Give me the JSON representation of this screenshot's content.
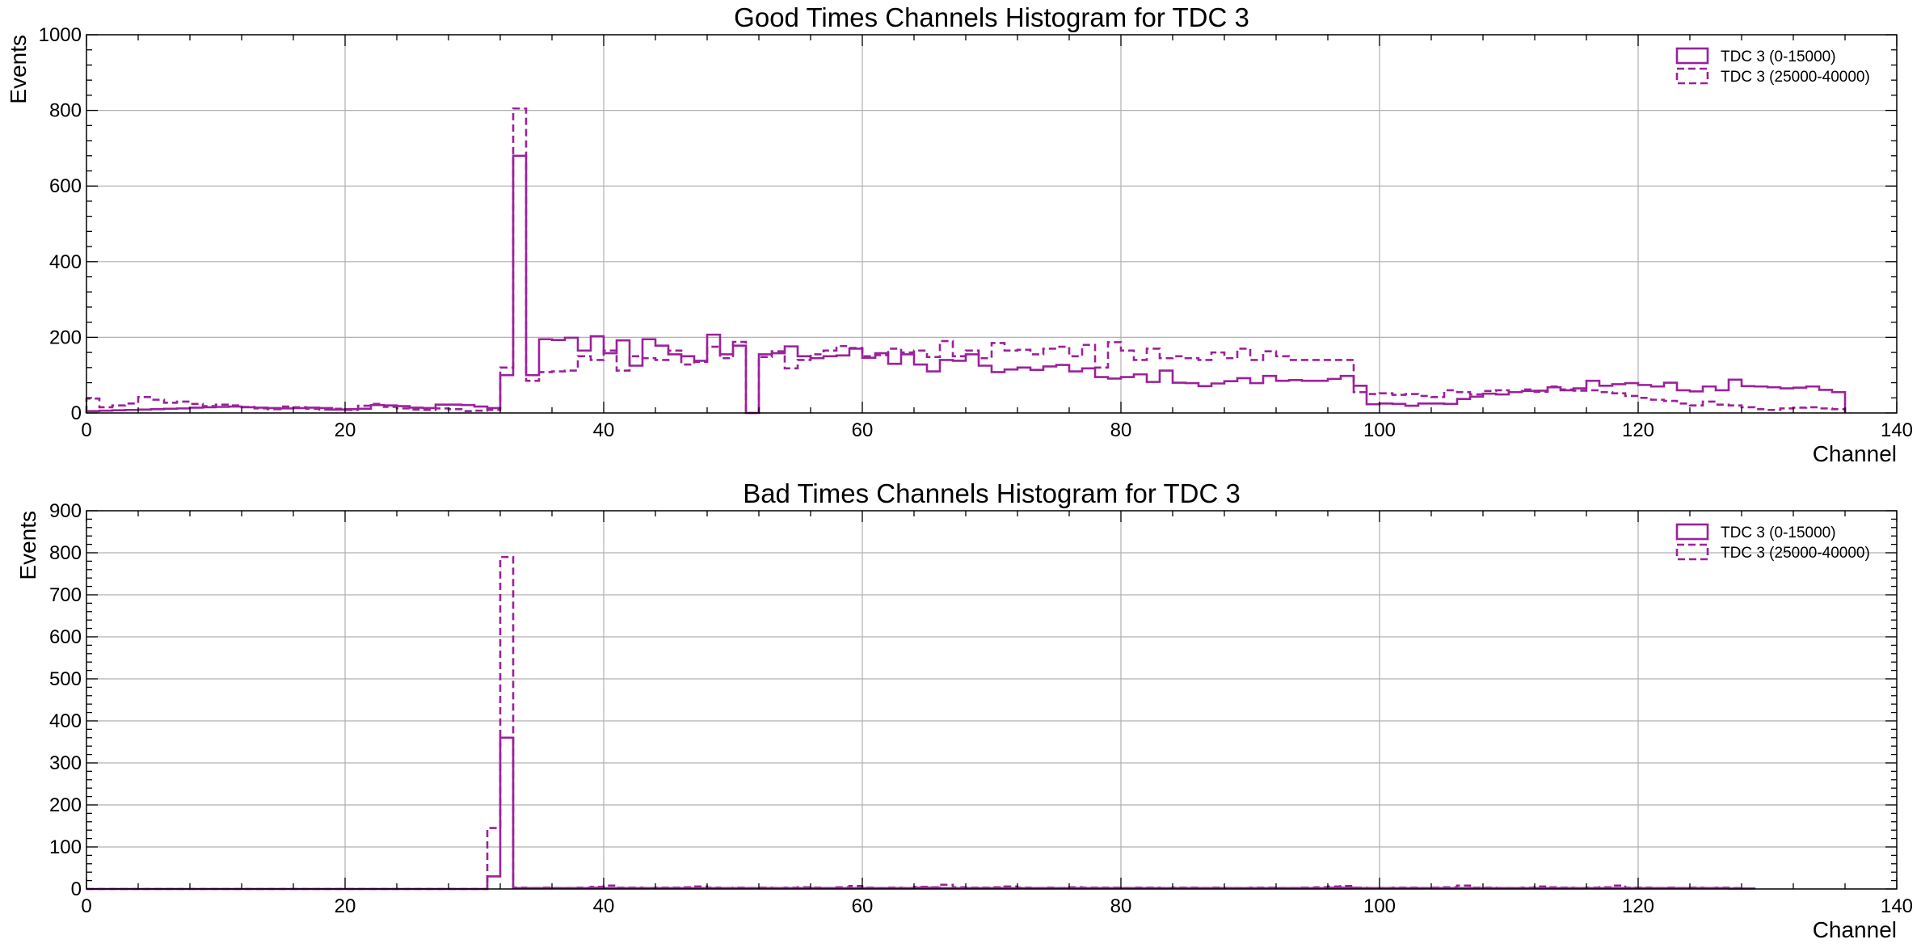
{
  "figure": {
    "accent_color": "#9B219B"
  },
  "chart_data": [
    {
      "type": "histogram",
      "title": "Good Times Channels Histogram for TDC 3",
      "xlabel": "Channel",
      "ylabel": "Events",
      "xlim": [
        0,
        140
      ],
      "ylim": [
        0,
        1000
      ],
      "xticks": [
        0,
        20,
        40,
        60,
        80,
        100,
        120,
        140
      ],
      "yticks": [
        0,
        200,
        400,
        600,
        800,
        1000
      ],
      "grid": true,
      "legend_position": "top-right",
      "bin_width": 1,
      "x_start": 0,
      "series": [
        {
          "name": "TDC 3 (0-15000)",
          "style": "solid",
          "color": "#9B219B",
          "values": [
            5,
            6,
            7,
            8,
            9,
            10,
            11,
            12,
            14,
            15,
            16,
            17,
            15,
            14,
            13,
            12,
            13,
            14,
            13,
            9,
            10,
            11,
            21,
            20,
            18,
            14,
            13,
            22,
            22,
            21,
            17,
            13,
            100,
            680,
            100,
            195,
            193,
            199,
            165,
            203,
            158,
            192,
            125,
            195,
            178,
            155,
            150,
            138,
            207,
            155,
            178,
            0,
            155,
            158,
            176,
            150,
            145,
            150,
            152,
            170,
            146,
            158,
            130,
            155,
            128,
            110,
            140,
            138,
            155,
            125,
            108,
            115,
            120,
            114,
            123,
            127,
            110,
            118,
            95,
            91,
            95,
            102,
            82,
            112,
            80,
            79,
            71,
            78,
            84,
            92,
            79,
            98,
            85,
            87,
            85,
            85,
            90,
            98,
            72,
            23,
            25,
            24,
            19,
            25,
            25,
            24,
            37,
            43,
            51,
            49,
            55,
            58,
            59,
            68,
            60,
            65,
            85,
            72,
            76,
            79,
            74,
            70,
            80,
            60,
            57,
            70,
            60,
            88,
            71,
            70,
            68,
            65,
            67,
            70,
            61,
            55
          ]
        },
        {
          "name": "TDC 3 (25000-40000)",
          "style": "dashed",
          "color": "#9B219B",
          "values": [
            38,
            15,
            20,
            25,
            42,
            35,
            27,
            30,
            24,
            18,
            22,
            20,
            16,
            12,
            10,
            17,
            15,
            11,
            9,
            11,
            8,
            19,
            24,
            16,
            12,
            9,
            8,
            12,
            10,
            5,
            6,
            8,
            120,
            805,
            85,
            108,
            110,
            112,
            150,
            140,
            165,
            112,
            150,
            145,
            140,
            165,
            128,
            135,
            175,
            145,
            188,
            0,
            148,
            163,
            118,
            140,
            155,
            165,
            177,
            172,
            150,
            153,
            170,
            160,
            165,
            148,
            190,
            150,
            165,
            145,
            185,
            165,
            167,
            155,
            170,
            175,
            150,
            180,
            120,
            187,
            165,
            140,
            170,
            145,
            150,
            145,
            140,
            160,
            145,
            170,
            140,
            163,
            150,
            140,
            140,
            140,
            140,
            140,
            55,
            50,
            52,
            48,
            50,
            45,
            42,
            60,
            55,
            49,
            58,
            60,
            55,
            62,
            56,
            70,
            62,
            59,
            60,
            55,
            52,
            45,
            40,
            35,
            32,
            25,
            20,
            30,
            22,
            20,
            15,
            10,
            8,
            12,
            14,
            15,
            12,
            10
          ]
        }
      ]
    },
    {
      "type": "histogram",
      "title": "Bad Times Channels Histogram for TDC 3",
      "xlabel": "Channel",
      "ylabel": "Events",
      "xlim": [
        0,
        140
      ],
      "ylim": [
        0,
        900
      ],
      "xticks": [
        0,
        20,
        40,
        60,
        80,
        100,
        120,
        140
      ],
      "yticks": [
        0,
        100,
        200,
        300,
        400,
        500,
        600,
        700,
        800,
        900
      ],
      "grid": true,
      "legend_position": "top-right",
      "bin_width": 1,
      "x_start": 0,
      "series": [
        {
          "name": "TDC 3 (0-15000)",
          "style": "solid",
          "color": "#9B219B",
          "values": [
            0,
            0,
            0,
            0,
            0,
            0,
            0,
            0,
            0,
            0,
            0,
            0,
            0,
            0,
            0,
            0,
            0,
            0,
            0,
            0,
            0,
            0,
            0,
            0,
            0,
            0,
            0,
            0,
            0,
            0,
            0,
            30,
            360,
            2,
            2,
            2,
            2,
            2,
            2,
            3,
            2,
            2,
            2,
            2,
            2,
            2,
            2,
            2,
            2,
            2,
            2,
            2,
            2,
            2,
            2,
            2,
            2,
            2,
            2,
            2,
            2,
            2,
            2,
            2,
            3,
            3,
            2,
            2,
            2,
            2,
            2,
            2,
            2,
            2,
            2,
            2,
            2,
            2,
            2,
            2,
            2,
            2,
            2,
            2,
            2,
            2,
            2,
            2,
            2,
            2,
            2,
            2,
            2,
            2,
            2,
            2,
            3,
            3,
            2,
            2,
            2,
            2,
            2,
            2,
            2,
            2,
            2,
            2,
            2,
            2,
            2,
            2,
            2,
            2,
            2,
            2,
            2,
            2,
            2,
            2,
            2,
            2,
            2,
            2,
            2,
            2,
            2,
            1,
            1
          ]
        },
        {
          "name": "TDC 3 (25000-40000)",
          "style": "dashed",
          "color": "#9B219B",
          "values": [
            0,
            0,
            0,
            0,
            0,
            0,
            0,
            0,
            0,
            0,
            0,
            0,
            0,
            0,
            0,
            0,
            0,
            0,
            0,
            0,
            0,
            0,
            0,
            0,
            0,
            0,
            0,
            0,
            0,
            0,
            0,
            145,
            790,
            3,
            2,
            3,
            2,
            2,
            3,
            5,
            8,
            3,
            3,
            2,
            3,
            3,
            4,
            6,
            3,
            2,
            3,
            2,
            3,
            2,
            3,
            4,
            3,
            2,
            4,
            7,
            3,
            2,
            3,
            2,
            5,
            4,
            10,
            4,
            3,
            3,
            4,
            6,
            3,
            2,
            3,
            2,
            4,
            3,
            3,
            3,
            2,
            3,
            3,
            2,
            3,
            3,
            2,
            3,
            2,
            2,
            3,
            3,
            2,
            2,
            3,
            4,
            6,
            7,
            3,
            2,
            2,
            3,
            3,
            2,
            3,
            4,
            8,
            3,
            3,
            2,
            2,
            3,
            6,
            4,
            3,
            2,
            3,
            4,
            8,
            3,
            3,
            2,
            3,
            2,
            3,
            2,
            3,
            2
          ]
        }
      ]
    }
  ]
}
